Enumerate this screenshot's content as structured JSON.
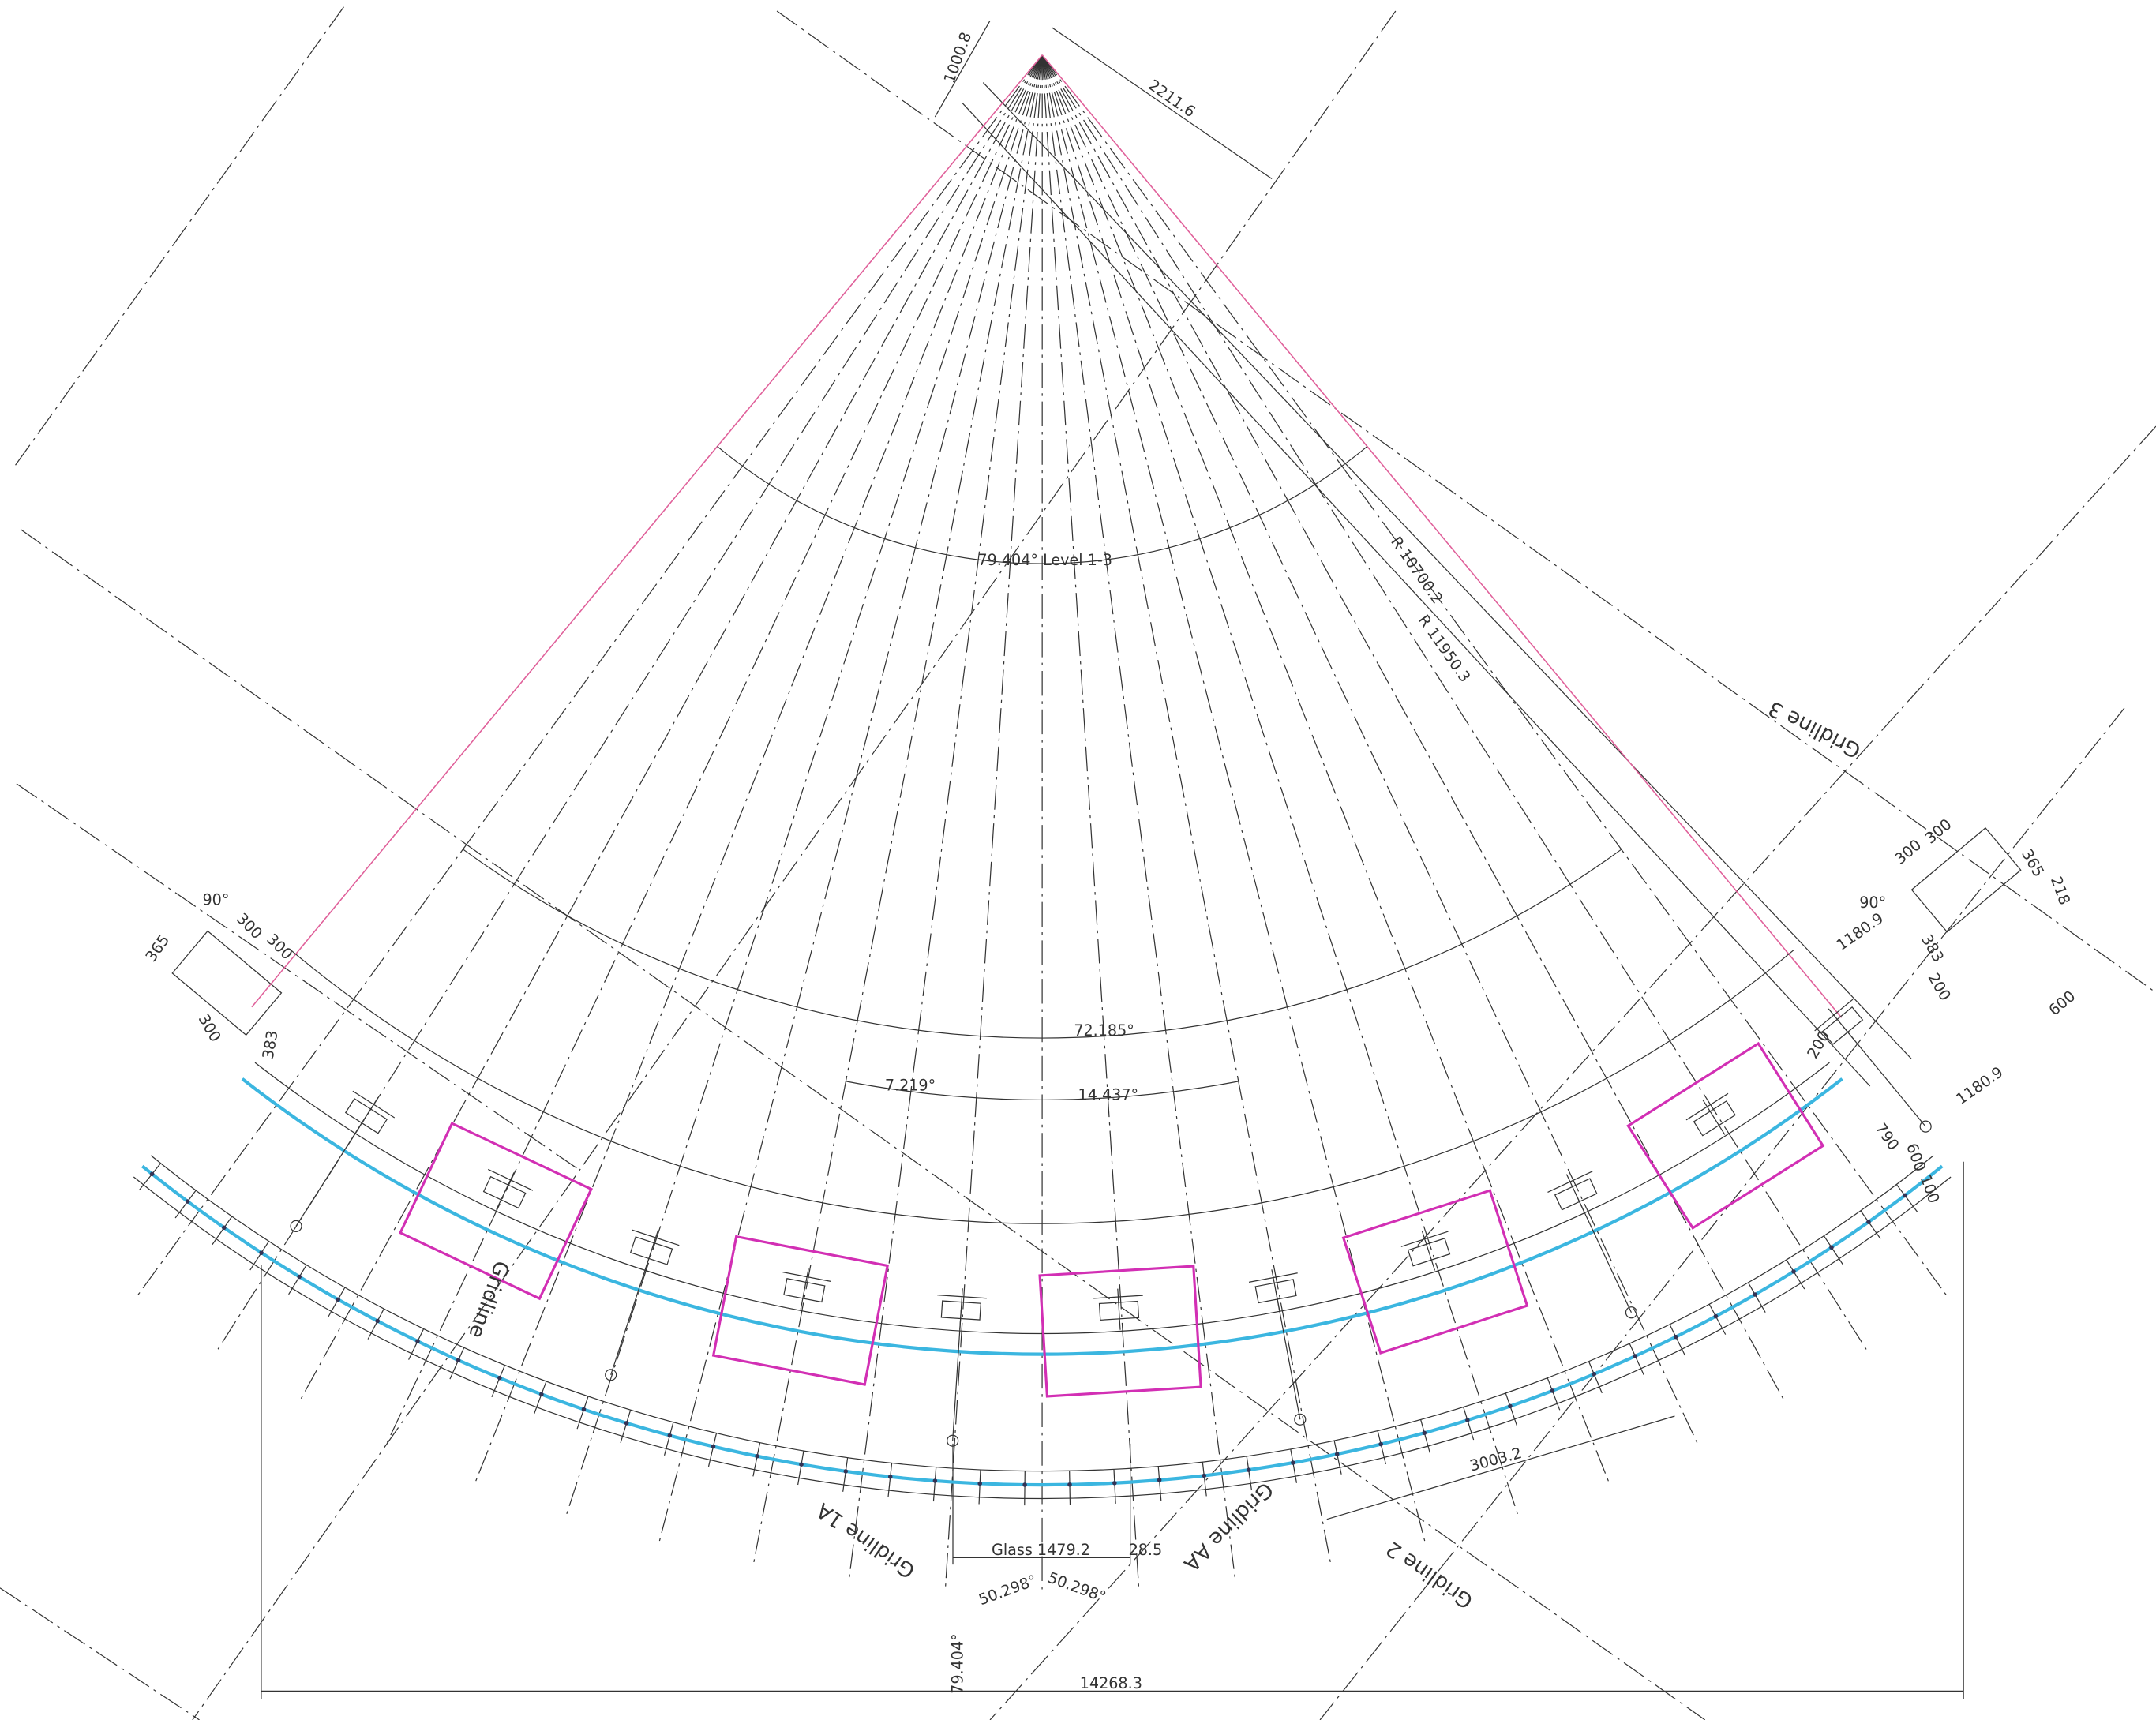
{
  "labels": [
    "1000.8",
    "2211.6",
    "79.404° Level 1-3",
    "R 10700.2",
    "R 11950.3",
    "Gridline 3",
    "90°",
    "300",
    "300",
    "365",
    "300",
    "383",
    "300",
    "300",
    "365",
    "218",
    "90°",
    "1180.9",
    "383",
    "200",
    "600",
    "200",
    "1180.9",
    "790",
    "600",
    "100",
    "72.185°",
    "7.219°",
    "14.437°",
    "Gridline",
    "Gridline 1A",
    "Gridline AA",
    "Gridline 2",
    "3003.2",
    "Glass 1479.2",
    "28.5",
    "50.298°",
    "50.298°",
    "79.404°",
    "14268.3"
  ]
}
